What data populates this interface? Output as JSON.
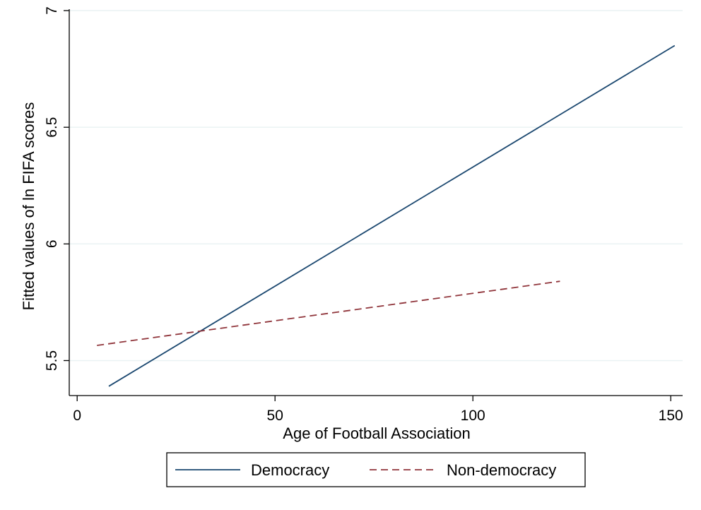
{
  "chart_data": {
    "type": "line",
    "xlabel": "Age of Football Association",
    "ylabel": "Fitted values of ln FIFA scores",
    "xlim": [
      -2,
      153
    ],
    "ylim": [
      5.35,
      7.0
    ],
    "x_ticks": [
      0,
      50,
      100,
      150
    ],
    "x_tick_labels": [
      "0",
      "50",
      "100",
      "150"
    ],
    "y_ticks": [
      5.5,
      6,
      6.5,
      7
    ],
    "y_tick_labels": [
      "5.5",
      "6",
      "6.5",
      "7"
    ],
    "grid": true,
    "legend_position": "bottom",
    "series": [
      {
        "name": "Democracy",
        "style": "solid",
        "color": "#1a476f",
        "points": [
          [
            8,
            5.39
          ],
          [
            151,
            6.85
          ]
        ]
      },
      {
        "name": "Non-democracy",
        "style": "dashed",
        "color": "#90353b",
        "points": [
          [
            5,
            5.565
          ],
          [
            122,
            5.84
          ]
        ]
      }
    ]
  }
}
